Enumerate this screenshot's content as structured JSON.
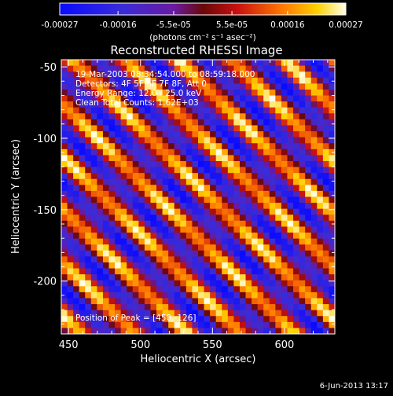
{
  "chart_data": {
    "type": "heatmap",
    "title": "Reconstructed RHESSI Image",
    "xlabel": "Heliocentric X (arcsec)",
    "ylabel": "Heliocentric Y (arcsec)",
    "xlim": [
      445,
      635
    ],
    "ylim": [
      -237,
      -45
    ],
    "xticks": [
      450,
      500,
      550,
      600
    ],
    "yticks": [
      -50,
      -100,
      -150,
      -200
    ],
    "colorbar": {
      "range": [
        -0.00027,
        0.00027
      ],
      "tick_labels": [
        "-0.00027",
        "-0.00016",
        "-5.5e-05",
        "5.5e-05",
        "0.00016",
        "0.00027"
      ],
      "tick_values": [
        -0.00027,
        -0.00016,
        -5.5e-05,
        5.5e-05,
        0.00016,
        0.00027
      ],
      "units": "(photons cm⁻² s⁻¹ asec⁻²)",
      "colormap": "blue-purple-red-yellow-white"
    },
    "annotations": [
      "19-Mar-2003 08:34:54.000 to 08:59:18.000",
      "Detectors: 4F 5F 6F 7F 8F, Att 0",
      "Energy Range: 12.0 - 25.0 keV",
      "Clean     Total Counts: 1.62E+03"
    ],
    "peak_label": "Position of Peak = [450,-126]",
    "peak": [
      450,
      -126
    ],
    "pattern": {
      "description": "diagonal fringe pattern running top-left to bottom-right",
      "grid_cells": [
        46,
        46
      ],
      "fringe_period_arcsec": 37,
      "fringe_angle_deg": 45
    }
  },
  "footer": {
    "timestamp": "6-Jun-2013 13:17"
  }
}
